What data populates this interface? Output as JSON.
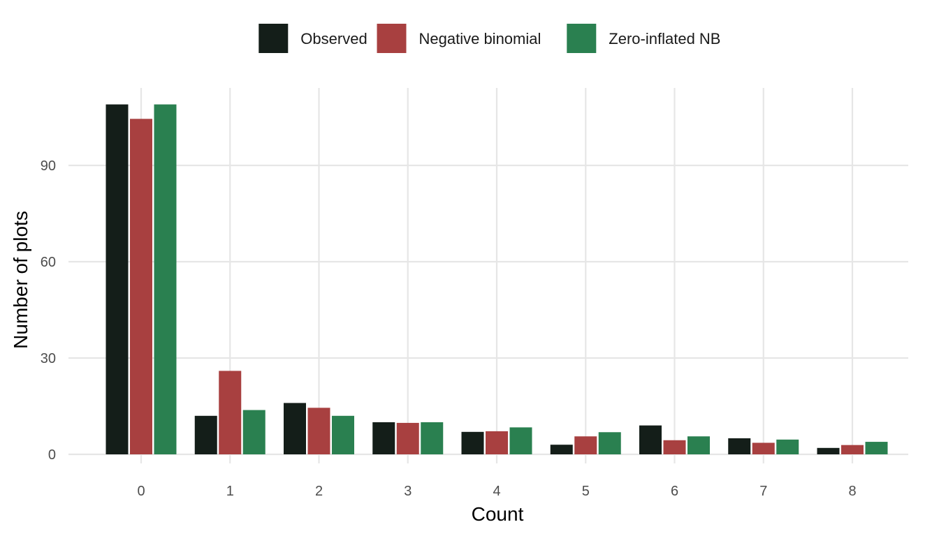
{
  "chart_data": {
    "type": "bar",
    "title": "",
    "xlabel": "Count",
    "ylabel": "Number of plots",
    "categories": [
      "0",
      "1",
      "2",
      "3",
      "4",
      "5",
      "6",
      "7",
      "8"
    ],
    "series": [
      {
        "name": "Observed",
        "color": "#141e19",
        "values": [
          109,
          12,
          16,
          10,
          7,
          3,
          9,
          5,
          2
        ]
      },
      {
        "name": "Negative binomial",
        "color": "#a84040",
        "values": [
          104.5,
          26,
          14.5,
          9.8,
          7.2,
          5.6,
          4.4,
          3.6,
          2.9
        ]
      },
      {
        "name": "Zero-inflated NB",
        "color": "#2a8050",
        "values": [
          109,
          13.8,
          12,
          10,
          8.4,
          6.9,
          5.6,
          4.6,
          3.9
        ]
      }
    ],
    "yticks": [
      0,
      30,
      60,
      90
    ],
    "ylim": [
      -2,
      114
    ],
    "grid": true,
    "legend_position": "top"
  }
}
